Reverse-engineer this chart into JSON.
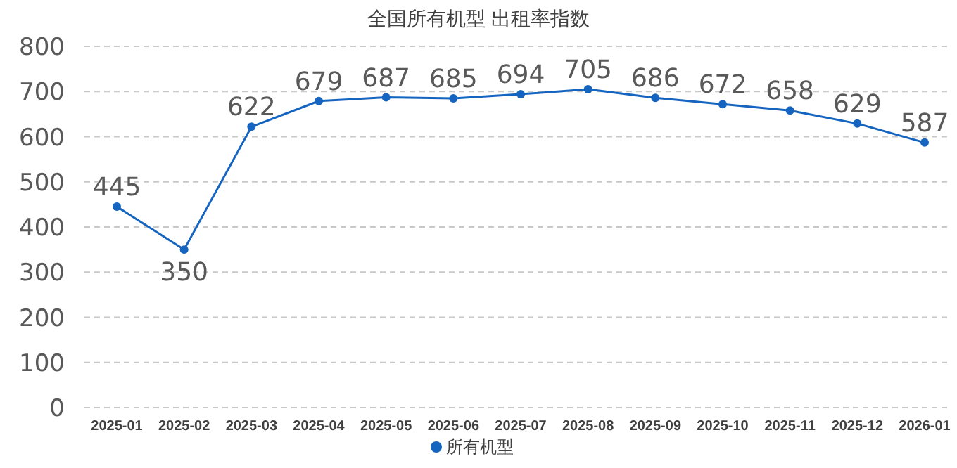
{
  "chart_data": {
    "type": "line",
    "title": "全国所有机型  出租率指数",
    "categories": [
      "2025-01",
      "2025-02",
      "2025-03",
      "2025-04",
      "2025-05",
      "2025-06",
      "2025-07",
      "2025-08",
      "2025-09",
      "2025-10",
      "2025-11",
      "2025-12",
      "2026-01"
    ],
    "series": [
      {
        "name": "所有机型",
        "color": "#1565c0",
        "values": [
          445,
          350,
          622,
          679,
          687,
          685,
          694,
          705,
          686,
          672,
          658,
          629,
          587
        ]
      }
    ],
    "ylim": [
      0,
      800
    ],
    "yticks": [
      0,
      100,
      200,
      300,
      400,
      500,
      600,
      700,
      800
    ],
    "grid": "y",
    "legend": "bottom",
    "marker": "circle",
    "line_style": "solid",
    "data_labels": true
  }
}
